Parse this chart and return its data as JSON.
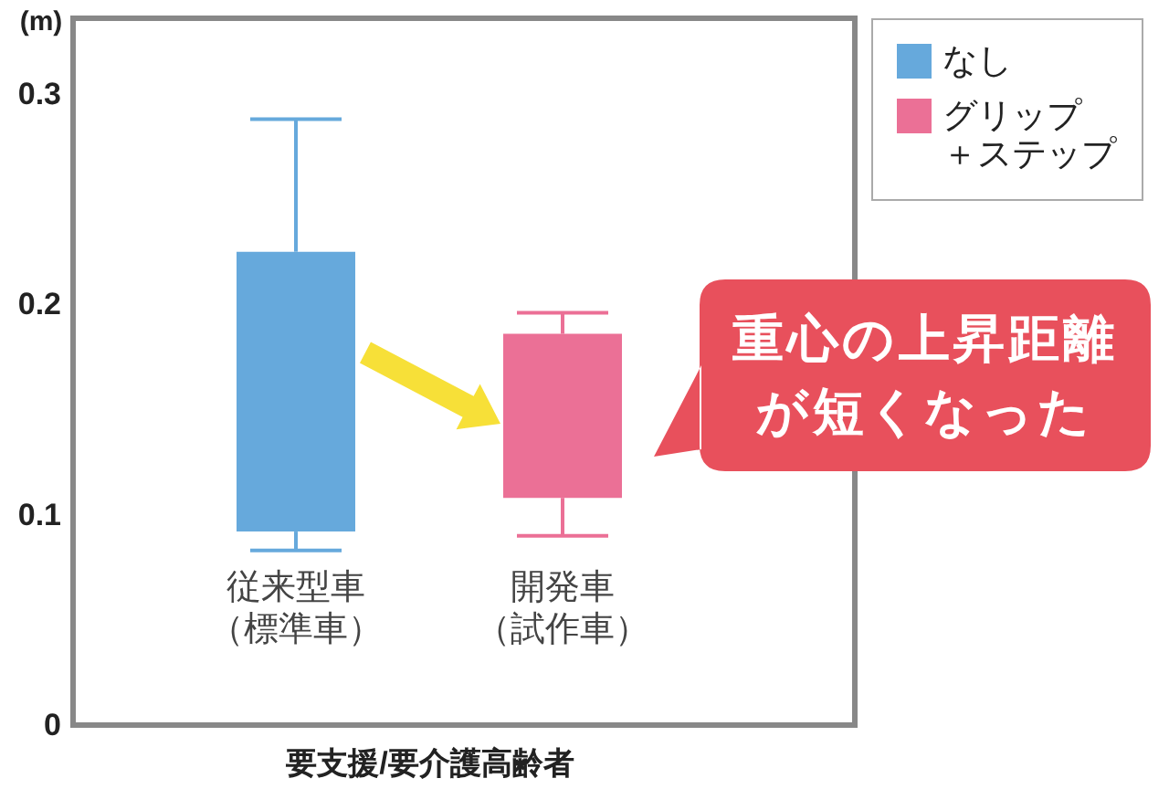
{
  "chart_data": {
    "type": "box",
    "ylabel": "(m)",
    "xlabel": "要支援/要介護高齢者",
    "categories": [
      "従来型車（標準車）",
      "開発車（試作車）"
    ],
    "series": [
      {
        "name": "なし",
        "color": "#66a9dc",
        "boxes": [
          {
            "low": 0.083,
            "q1": 0.092,
            "median": null,
            "q3": 0.225,
            "high": 0.288
          },
          null
        ]
      },
      {
        "name": "グリップ＋ステップ",
        "color": "#eb7096",
        "boxes": [
          null,
          {
            "low": 0.09,
            "q1": 0.108,
            "median": null,
            "q3": 0.186,
            "high": 0.196
          }
        ]
      }
    ],
    "ylim": [
      0,
      0.336
    ],
    "yticks": [
      0,
      0.1,
      0.2,
      0.3
    ],
    "legend": "top right",
    "annotations": [
      "重心の上昇距離が短くなった"
    ]
  }
}
